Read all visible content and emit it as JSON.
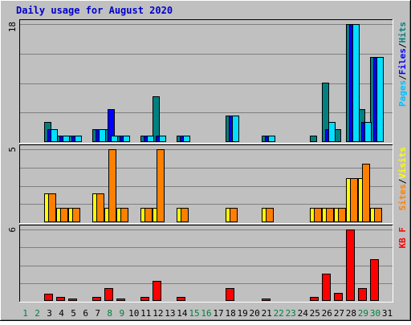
{
  "chart_data": {
    "type": "bar",
    "title": "Daily usage for August 2020",
    "days": [
      "1",
      "2",
      "3",
      "4",
      "5",
      "6",
      "7",
      "8",
      "9",
      "10",
      "11",
      "12",
      "13",
      "14",
      "15",
      "16",
      "17",
      "18",
      "19",
      "20",
      "21",
      "22",
      "23",
      "24",
      "25",
      "26",
      "27",
      "28",
      "29",
      "30",
      "31"
    ],
    "weekend_days": [
      1,
      2,
      8,
      9,
      15,
      16,
      22,
      23,
      29,
      30
    ],
    "colors": {
      "background": "#c0c0c0",
      "plot": "#c0c0c0",
      "grid": "#808080",
      "title": "#0000ff",
      "weekday": "#000000",
      "weekend": "#008040",
      "hits": "#008080",
      "files": "#0000ff",
      "pages": "#00e0ff",
      "visits": "#ffff00",
      "sites": "#ff8000",
      "kbytes": "#ff0000"
    },
    "panels": [
      {
        "max_label": "18",
        "ylim": [
          0,
          18
        ],
        "legend": [
          {
            "text": "Pages",
            "color": "#00c0ff"
          },
          {
            "text": "/",
            "color": "#000000"
          },
          {
            "text": "Files",
            "color": "#0000ff"
          },
          {
            "text": "/",
            "color": "#000000"
          },
          {
            "text": "Hits",
            "color": "#008080"
          }
        ],
        "series": [
          {
            "name": "Hits",
            "color": "#008080",
            "values": [
              0,
              0,
              3,
              1,
              1,
              0,
              2,
              2,
              1,
              0,
              1,
              7,
              0,
              1,
              0,
              0,
              0,
              4,
              0,
              0,
              1,
              0,
              0,
              0,
              1,
              9,
              2,
              18,
              5,
              13,
              0
            ]
          },
          {
            "name": "Files",
            "color": "#0000ff",
            "values": [
              0,
              0,
              2,
              1,
              1,
              0,
              2,
              5,
              1,
              0,
              1,
              1,
              0,
              1,
              0,
              0,
              0,
              4,
              0,
              0,
              1,
              0,
              0,
              0,
              0,
              2,
              0,
              18,
              3,
              13,
              0
            ]
          },
          {
            "name": "Pages",
            "color": "#00e0ff",
            "values": [
              0,
              0,
              2,
              1,
              1,
              0,
              2,
              1,
              1,
              0,
              1,
              1,
              0,
              1,
              0,
              0,
              0,
              4,
              0,
              0,
              1,
              0,
              0,
              0,
              0,
              3,
              0,
              18,
              3,
              13,
              0
            ]
          }
        ]
      },
      {
        "max_label": "5",
        "ylim": [
          0,
          5
        ],
        "legend": [
          {
            "text": "Sites",
            "color": "#ff8000"
          },
          {
            "text": "/",
            "color": "#000000"
          },
          {
            "text": "Visits",
            "color": "#ffff00"
          }
        ],
        "series": [
          {
            "name": "Visits",
            "color": "#ffff00",
            "values": [
              0,
              0,
              2,
              1,
              1,
              0,
              2,
              1,
              1,
              0,
              1,
              1,
              0,
              1,
              0,
              0,
              0,
              1,
              0,
              0,
              1,
              0,
              0,
              0,
              1,
              1,
              1,
              3,
              3,
              1,
              0
            ]
          },
          {
            "name": "Sites",
            "color": "#ff8000",
            "values": [
              0,
              0,
              2,
              1,
              1,
              0,
              2,
              5,
              1,
              0,
              1,
              5,
              0,
              1,
              0,
              0,
              0,
              1,
              0,
              0,
              1,
              0,
              0,
              0,
              1,
              1,
              1,
              3,
              4,
              1,
              0
            ]
          }
        ]
      },
      {
        "max_label": "6",
        "ylim": [
          0,
          6
        ],
        "legend": [
          {
            "text": "KB F",
            "color": "#ff0000"
          }
        ],
        "series": [
          {
            "name": "KB F",
            "color": "#ff0000",
            "values": [
              0,
              0,
              0.6,
              0.35,
              0.2,
              0,
              0.35,
              1.1,
              0.2,
              0,
              0.35,
              1.7,
              0,
              0.35,
              0,
              0,
              0,
              1.1,
              0,
              0,
              0.2,
              0,
              0,
              0,
              0.35,
              2.3,
              0.65,
              6,
              1.1,
              3.5,
              0
            ]
          }
        ]
      }
    ]
  }
}
